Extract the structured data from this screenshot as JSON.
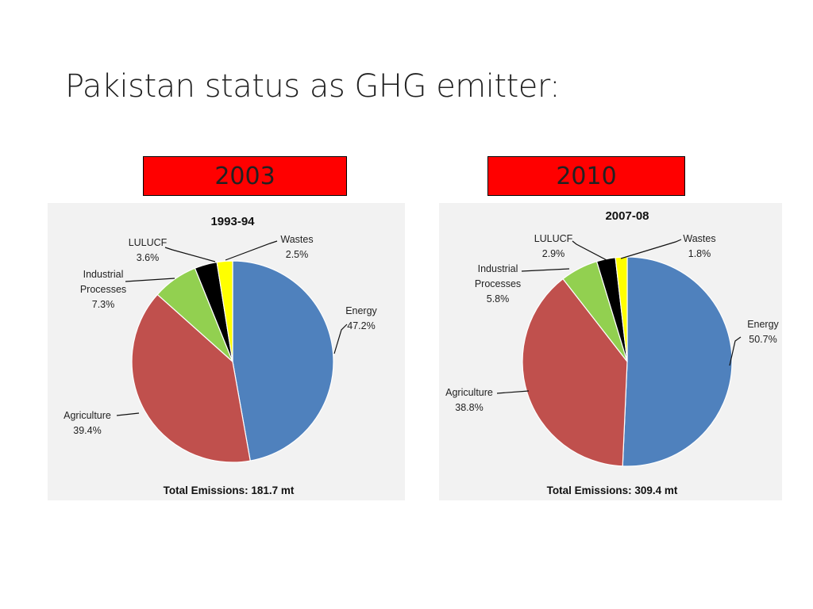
{
  "slide": {
    "title": "Pakistan status as GHG emitter:",
    "year_left": "2003",
    "year_right": "2010"
  },
  "colors": {
    "energy": "#4f81bd",
    "agriculture": "#c0504d",
    "industrial": "#92d050",
    "lulucf": "#000000",
    "wastes": "#ffff00",
    "year_box": "#ff0000"
  },
  "chart_data": [
    {
      "type": "pie",
      "title": "1993-94",
      "footer": "Total Emissions: 181.7 mt",
      "slices": [
        {
          "label": "Energy",
          "value": 47.2,
          "value_label": "47.2%",
          "color": "#4f81bd"
        },
        {
          "label": "Agriculture",
          "value": 39.4,
          "value_label": "39.4%",
          "color": "#c0504d"
        },
        {
          "label": "Industrial Processes",
          "value": 7.3,
          "value_label": "7.3%",
          "color": "#92d050"
        },
        {
          "label": "LULUCF",
          "value": 3.6,
          "value_label": "3.6%",
          "color": "#000000"
        },
        {
          "label": "Wastes",
          "value": 2.5,
          "value_label": "2.5%",
          "color": "#ffff00"
        }
      ]
    },
    {
      "type": "pie",
      "title": "2007-08",
      "footer": "Total Emissions: 309.4 mt",
      "slices": [
        {
          "label": "Energy",
          "value": 50.7,
          "value_label": "50.7%",
          "color": "#4f81bd"
        },
        {
          "label": "Agriculture",
          "value": 38.8,
          "value_label": "38.8%",
          "color": "#c0504d"
        },
        {
          "label": "Industrial Processes",
          "value": 5.8,
          "value_label": "5.8%",
          "color": "#92d050"
        },
        {
          "label": "LULUCF",
          "value": 2.9,
          "value_label": "2.9%",
          "color": "#000000"
        },
        {
          "label": "Wastes",
          "value": 1.8,
          "value_label": "1.8%",
          "color": "#ffff00"
        }
      ]
    }
  ]
}
